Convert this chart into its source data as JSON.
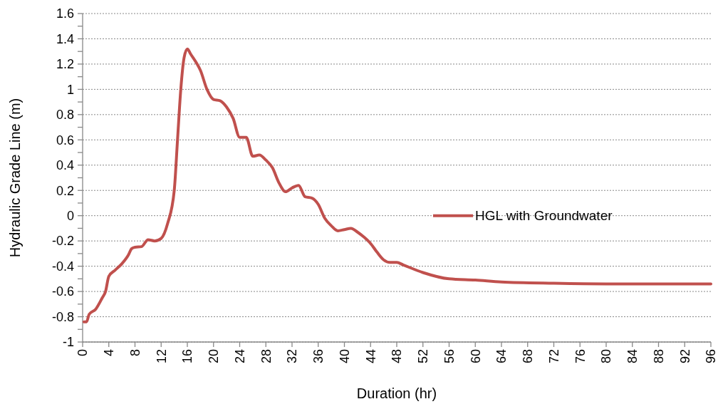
{
  "chart_data": {
    "type": "line",
    "xlabel": "Duration (hr)",
    "ylabel": "Hydraulic Grade Line (m)",
    "xlim": [
      0,
      96
    ],
    "xticks": [
      0,
      4,
      8,
      12,
      16,
      20,
      24,
      28,
      32,
      36,
      40,
      44,
      48,
      52,
      56,
      60,
      64,
      68,
      72,
      76,
      80,
      84,
      88,
      92,
      96
    ],
    "ylim": [
      -1,
      1.6
    ],
    "yticks": [
      -1,
      {
        "value": -0.9,
        "label": null
      },
      -0.8,
      {
        "value": -0.7,
        "label": null
      },
      -0.6,
      {
        "value": -0.5,
        "label": null
      },
      -0.4,
      {
        "value": -0.3,
        "label": null
      },
      -0.2,
      {
        "value": -0.1,
        "label": null
      },
      0,
      {
        "value": 0.1,
        "label": null
      },
      0.2,
      {
        "value": 0.3,
        "label": null
      },
      0.4,
      {
        "value": 0.5,
        "label": null
      },
      0.6,
      {
        "value": 0.7,
        "label": null
      },
      0.8,
      {
        "value": 0.9,
        "label": null
      },
      1,
      {
        "value": 1.1,
        "label": null
      },
      1.2,
      {
        "value": 1.3,
        "label": null
      },
      1.4,
      {
        "value": 1.5,
        "label": null
      },
      1.6
    ],
    "grid": "y",
    "legend": "right",
    "marker": "none",
    "line_style": "solid",
    "series": [
      {
        "name": "HGL with Groundwater",
        "color": "#c0504d",
        "x": [
          0.2,
          0.6,
          1,
          2,
          3,
          3.5,
          4,
          5,
          6,
          7,
          7.5,
          8,
          9,
          10,
          11,
          12,
          13,
          14,
          14.5,
          15,
          15.5,
          16,
          16.5,
          17.5,
          18,
          19,
          20,
          21,
          22,
          23,
          24,
          25,
          26,
          27,
          28,
          29,
          30,
          31,
          32,
          33,
          34,
          35,
          36,
          37,
          38,
          39,
          40,
          41,
          42,
          43,
          44,
          45,
          46,
          47,
          48,
          49,
          52,
          56,
          60,
          64,
          72,
          80,
          96
        ],
        "values": [
          -0.84,
          -0.84,
          -0.78,
          -0.74,
          -0.65,
          -0.6,
          -0.48,
          -0.43,
          -0.38,
          -0.31,
          -0.26,
          -0.25,
          -0.245,
          -0.19,
          -0.2,
          -0.18,
          -0.06,
          0.2,
          0.6,
          1.0,
          1.25,
          1.32,
          1.28,
          1.2,
          1.15,
          1.0,
          0.92,
          0.91,
          0.86,
          0.77,
          0.62,
          0.62,
          0.47,
          0.48,
          0.44,
          0.38,
          0.26,
          0.19,
          0.22,
          0.24,
          0.15,
          0.14,
          0.09,
          -0.02,
          -0.08,
          -0.12,
          -0.11,
          -0.1,
          -0.13,
          -0.17,
          -0.22,
          -0.29,
          -0.35,
          -0.37,
          -0.37,
          -0.39,
          -0.45,
          -0.5,
          -0.51,
          -0.525,
          -0.535,
          -0.54,
          -0.54
        ]
      }
    ]
  }
}
